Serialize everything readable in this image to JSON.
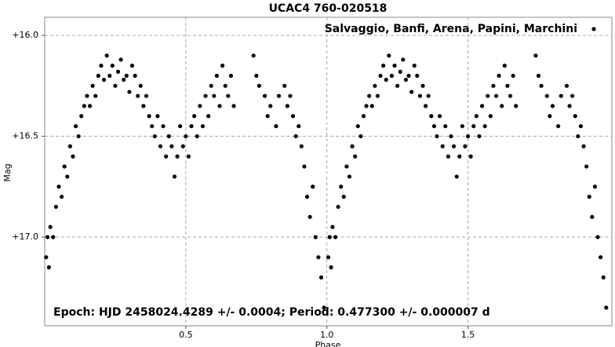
{
  "chart_data": {
    "type": "scatter",
    "title": "UCAC4 760-020518",
    "x_label": "Phase",
    "y_label": "Mag",
    "annotation": "Epoch: HJD 2458024.4289 +/- 0.0004; Period: 0.477300 +/- 0.000007 d",
    "xlim": [
      0,
      2.01
    ],
    "ylim": [
      17.44,
      15.91
    ],
    "xticks": [
      0.5,
      {
        "value": 1,
        "label": "1.0"
      },
      1.5
    ],
    "yticks": [
      {
        "value": 16,
        "label": "+16.0"
      },
      {
        "value": 16.5,
        "label": "+16.5"
      },
      {
        "value": 17,
        "label": "+17.0"
      }
    ],
    "grid": true,
    "legend": "upper right",
    "series": [
      {
        "name": "Salvaggio, Banfi, Arena, Papini, Marchini",
        "color": "#000000",
        "x": [
          0.005,
          0.01,
          0.015,
          0.02,
          0.03,
          0.04,
          0.05,
          0.06,
          0.07,
          0.08,
          0.09,
          0.1,
          0.11,
          0.12,
          0.13,
          0.14,
          0.15,
          0.16,
          0.17,
          0.18,
          0.19,
          0.2,
          0.21,
          0.22,
          0.23,
          0.24,
          0.25,
          0.26,
          0.27,
          0.28,
          0.29,
          0.3,
          0.31,
          0.32,
          0.33,
          0.34,
          0.35,
          0.36,
          0.37,
          0.38,
          0.39,
          0.4,
          0.41,
          0.42,
          0.43,
          0.44,
          0.45,
          0.46,
          0.47,
          0.48,
          0.49,
          0.5,
          0.51,
          0.52,
          0.53,
          0.54,
          0.55,
          0.56,
          0.57,
          0.58,
          0.59,
          0.6,
          0.61,
          0.62,
          0.63,
          0.64,
          0.65,
          0.66,
          0.67,
          0.74,
          0.75,
          0.76,
          0.78,
          0.79,
          0.8,
          0.82,
          0.83,
          0.85,
          0.86,
          0.87,
          0.88,
          0.89,
          0.9,
          0.91,
          0.92,
          0.93,
          0.94,
          0.95,
          0.96,
          0.97,
          0.98,
          0.99,
          1.005,
          1.01,
          1.015,
          1.02,
          1.03,
          1.04,
          1.05,
          1.06,
          1.07,
          1.08,
          1.09,
          1.1,
          1.11,
          1.12,
          1.13,
          1.14,
          1.15,
          1.16,
          1.17,
          1.18,
          1.19,
          1.2,
          1.21,
          1.22,
          1.23,
          1.24,
          1.25,
          1.26,
          1.27,
          1.28,
          1.29,
          1.3,
          1.31,
          1.32,
          1.33,
          1.34,
          1.35,
          1.36,
          1.37,
          1.38,
          1.39,
          1.4,
          1.41,
          1.42,
          1.43,
          1.44,
          1.45,
          1.46,
          1.47,
          1.48,
          1.49,
          1.5,
          1.51,
          1.52,
          1.53,
          1.54,
          1.55,
          1.56,
          1.57,
          1.58,
          1.59,
          1.6,
          1.61,
          1.62,
          1.63,
          1.64,
          1.65,
          1.66,
          1.67,
          1.74,
          1.75,
          1.76,
          1.78,
          1.79,
          1.8,
          1.82,
          1.83,
          1.85,
          1.86,
          1.87,
          1.88,
          1.89,
          1.9,
          1.91,
          1.92,
          1.93,
          1.94,
          1.95,
          1.96,
          1.97,
          1.98,
          1.99
        ],
        "values": [
          17.1,
          17.0,
          17.15,
          16.95,
          17.0,
          16.85,
          16.75,
          16.8,
          16.65,
          16.7,
          16.55,
          16.6,
          16.45,
          16.5,
          16.4,
          16.35,
          16.3,
          16.35,
          16.25,
          16.3,
          16.2,
          16.15,
          16.22,
          16.1,
          16.2,
          16.15,
          16.25,
          16.18,
          16.12,
          16.22,
          16.2,
          16.28,
          16.15,
          16.2,
          16.3,
          16.25,
          16.35,
          16.3,
          16.4,
          16.45,
          16.5,
          16.4,
          16.55,
          16.45,
          16.6,
          16.5,
          16.55,
          16.7,
          16.6,
          16.45,
          16.55,
          16.5,
          16.6,
          16.45,
          16.4,
          16.5,
          16.35,
          16.45,
          16.3,
          16.4,
          16.25,
          16.3,
          16.2,
          16.35,
          16.15,
          16.25,
          16.3,
          16.2,
          16.35,
          16.1,
          16.2,
          16.25,
          16.3,
          16.4,
          16.35,
          16.45,
          16.3,
          16.25,
          16.35,
          16.3,
          16.4,
          16.5,
          16.45,
          16.55,
          16.65,
          16.8,
          16.9,
          16.75,
          17.0,
          17.1,
          17.2,
          17.35,
          17.1,
          17.0,
          17.15,
          16.95,
          17.0,
          16.85,
          16.75,
          16.8,
          16.65,
          16.7,
          16.55,
          16.6,
          16.45,
          16.5,
          16.4,
          16.35,
          16.3,
          16.35,
          16.25,
          16.3,
          16.2,
          16.15,
          16.22,
          16.1,
          16.2,
          16.15,
          16.25,
          16.18,
          16.12,
          16.22,
          16.2,
          16.28,
          16.15,
          16.2,
          16.3,
          16.25,
          16.35,
          16.3,
          16.4,
          16.45,
          16.5,
          16.4,
          16.55,
          16.45,
          16.6,
          16.5,
          16.55,
          16.7,
          16.6,
          16.45,
          16.55,
          16.5,
          16.6,
          16.45,
          16.4,
          16.5,
          16.35,
          16.45,
          16.3,
          16.4,
          16.25,
          16.3,
          16.2,
          16.35,
          16.15,
          16.25,
          16.3,
          16.2,
          16.35,
          16.1,
          16.2,
          16.25,
          16.3,
          16.4,
          16.35,
          16.45,
          16.3,
          16.25,
          16.35,
          16.3,
          16.4,
          16.5,
          16.45,
          16.55,
          16.65,
          16.8,
          16.9,
          16.75,
          17.0,
          17.1,
          17.2,
          17.35
        ]
      }
    ]
  }
}
